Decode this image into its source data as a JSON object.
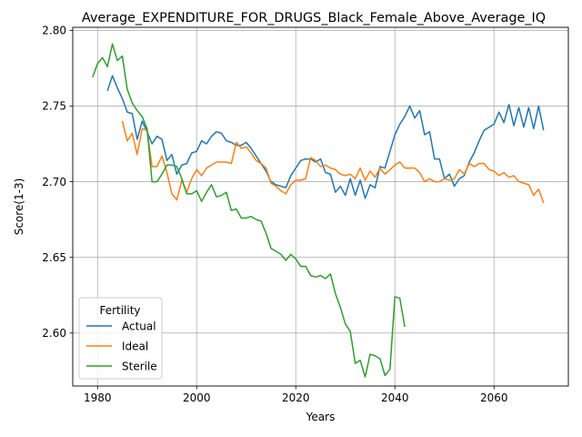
{
  "chart_data": {
    "type": "line",
    "title": "Average_EXPENDITURE_FOR_DRUGS_Black_Female_Above_Average_IQ",
    "xlabel": "Years",
    "ylabel": "Score(1-3)",
    "xlim": [
      1975,
      2075
    ],
    "ylim": [
      2.565,
      2.802
    ],
    "xticks": [
      1980,
      2000,
      2020,
      2040,
      2060
    ],
    "yticks": [
      2.6,
      2.65,
      2.7,
      2.75,
      2.8
    ],
    "xtick_labels": [
      "1980",
      "2000",
      "2020",
      "2040",
      "2060"
    ],
    "ytick_labels": [
      "2.60",
      "2.65",
      "2.70",
      "2.75",
      "2.80"
    ],
    "grid": true,
    "legend": {
      "title": "Fertility",
      "placement": "lower-left"
    },
    "series": [
      {
        "name": "Actual",
        "color": "#1f77b4",
        "x": [
          1982,
          1983,
          1984,
          1985,
          1986,
          1987,
          1988,
          1989,
          1990,
          1991,
          1992,
          1993,
          1994,
          1995,
          1996,
          1997,
          1998,
          1999,
          2000,
          2001,
          2002,
          2003,
          2004,
          2005,
          2006,
          2007,
          2008,
          2009,
          2010,
          2011,
          2012,
          2013,
          2014,
          2015,
          2016,
          2017,
          2018,
          2019,
          2020,
          2021,
          2022,
          2023,
          2024,
          2025,
          2026,
          2027,
          2028,
          2029,
          2030,
          2031,
          2032,
          2033,
          2034,
          2035,
          2036,
          2037,
          2038,
          2039,
          2040,
          2041,
          2042,
          2043,
          2044,
          2045,
          2046,
          2047,
          2048,
          2049,
          2050,
          2051,
          2052,
          2053,
          2054,
          2055,
          2056,
          2057,
          2058,
          2059,
          2060,
          2061,
          2062,
          2063,
          2064,
          2065,
          2066,
          2067,
          2068,
          2069,
          2070
        ],
        "values": [
          2.76,
          2.77,
          2.762,
          2.755,
          2.746,
          2.745,
          2.728,
          2.74,
          2.733,
          2.725,
          2.73,
          2.728,
          2.714,
          2.718,
          2.705,
          2.711,
          2.712,
          2.719,
          2.72,
          2.727,
          2.725,
          2.73,
          2.733,
          2.732,
          2.727,
          2.726,
          2.724,
          2.724,
          2.726,
          2.722,
          2.717,
          2.712,
          2.707,
          2.7,
          2.698,
          2.697,
          2.696,
          2.704,
          2.709,
          2.714,
          2.715,
          2.715,
          2.713,
          2.715,
          2.706,
          2.705,
          2.693,
          2.697,
          2.691,
          2.702,
          2.691,
          2.701,
          2.689,
          2.698,
          2.696,
          2.71,
          2.709,
          2.72,
          2.731,
          2.738,
          2.743,
          2.75,
          2.742,
          2.747,
          2.731,
          2.733,
          2.715,
          2.715,
          2.702,
          2.705,
          2.697,
          2.702,
          2.704,
          2.713,
          2.719,
          2.727,
          2.734,
          2.736,
          2.738,
          2.746,
          2.739,
          2.751,
          2.737,
          2.749,
          2.736,
          2.749,
          2.735,
          2.75,
          2.734
        ]
      },
      {
        "name": "Ideal",
        "color": "#ff7f0e",
        "x": [
          1985,
          1986,
          1987,
          1988,
          1989,
          1990,
          1991,
          1992,
          1993,
          1994,
          1995,
          1996,
          1997,
          1998,
          1999,
          2000,
          2001,
          2002,
          2003,
          2004,
          2005,
          2006,
          2007,
          2008,
          2009,
          2010,
          2011,
          2012,
          2013,
          2014,
          2015,
          2016,
          2017,
          2018,
          2019,
          2020,
          2021,
          2022,
          2023,
          2024,
          2025,
          2026,
          2027,
          2028,
          2029,
          2030,
          2031,
          2032,
          2033,
          2034,
          2035,
          2036,
          2037,
          2038,
          2039,
          2040,
          2041,
          2042,
          2043,
          2044,
          2045,
          2046,
          2047,
          2048,
          2049,
          2050,
          2051,
          2052,
          2053,
          2054,
          2055,
          2056,
          2057,
          2058,
          2059,
          2060,
          2061,
          2062,
          2063,
          2064,
          2065,
          2066,
          2067,
          2068,
          2069,
          2070
        ],
        "values": [
          2.74,
          2.727,
          2.732,
          2.718,
          2.735,
          2.734,
          2.71,
          2.71,
          2.717,
          2.706,
          2.692,
          2.688,
          2.701,
          2.693,
          2.702,
          2.708,
          2.704,
          2.709,
          2.711,
          2.713,
          2.713,
          2.713,
          2.712,
          2.726,
          2.722,
          2.723,
          2.719,
          2.714,
          2.712,
          2.709,
          2.699,
          2.697,
          2.694,
          2.692,
          2.698,
          2.701,
          2.701,
          2.702,
          2.716,
          2.714,
          2.71,
          2.711,
          2.709,
          2.708,
          2.705,
          2.704,
          2.705,
          2.702,
          2.709,
          2.701,
          2.707,
          2.703,
          2.709,
          2.705,
          2.708,
          2.711,
          2.713,
          2.709,
          2.709,
          2.709,
          2.706,
          2.7,
          2.702,
          2.7,
          2.7,
          2.702,
          2.701,
          2.702,
          2.708,
          2.705,
          2.712,
          2.71,
          2.712,
          2.712,
          2.708,
          2.707,
          2.704,
          2.706,
          2.703,
          2.704,
          2.7,
          2.699,
          2.698,
          2.691,
          2.695,
          2.686
        ]
      },
      {
        "name": "Sterile",
        "color": "#2ca02c",
        "x": [
          1979,
          1980,
          1981,
          1982,
          1983,
          1984,
          1985,
          1986,
          1987,
          1988,
          1989,
          1990,
          1991,
          1992,
          1993,
          1994,
          1995,
          1996,
          1997,
          1998,
          1999,
          2000,
          2001,
          2002,
          2003,
          2004,
          2005,
          2006,
          2007,
          2008,
          2009,
          2010,
          2011,
          2012,
          2013,
          2014,
          2015,
          2016,
          2017,
          2018,
          2019,
          2020,
          2021,
          2022,
          2023,
          2024,
          2025,
          2026,
          2027,
          2028,
          2029,
          2030,
          2031,
          2032,
          2033,
          2034,
          2035,
          2036,
          2037,
          2038,
          2039,
          2040,
          2041,
          2042
        ],
        "values": [
          2.769,
          2.778,
          2.782,
          2.776,
          2.791,
          2.78,
          2.783,
          2.761,
          2.752,
          2.747,
          2.743,
          2.735,
          2.7,
          2.7,
          2.705,
          2.711,
          2.711,
          2.71,
          2.702,
          2.692,
          2.692,
          2.694,
          2.687,
          2.693,
          2.698,
          2.69,
          2.691,
          2.693,
          2.681,
          2.682,
          2.676,
          2.676,
          2.677,
          2.675,
          2.674,
          2.666,
          2.656,
          2.654,
          2.652,
          2.648,
          2.652,
          2.649,
          2.644,
          2.644,
          2.638,
          2.637,
          2.638,
          2.636,
          2.639,
          2.626,
          2.617,
          2.606,
          2.601,
          2.58,
          2.582,
          2.571,
          2.586,
          2.585,
          2.583,
          2.572,
          2.576,
          2.624,
          2.623,
          2.604
        ]
      }
    ]
  }
}
